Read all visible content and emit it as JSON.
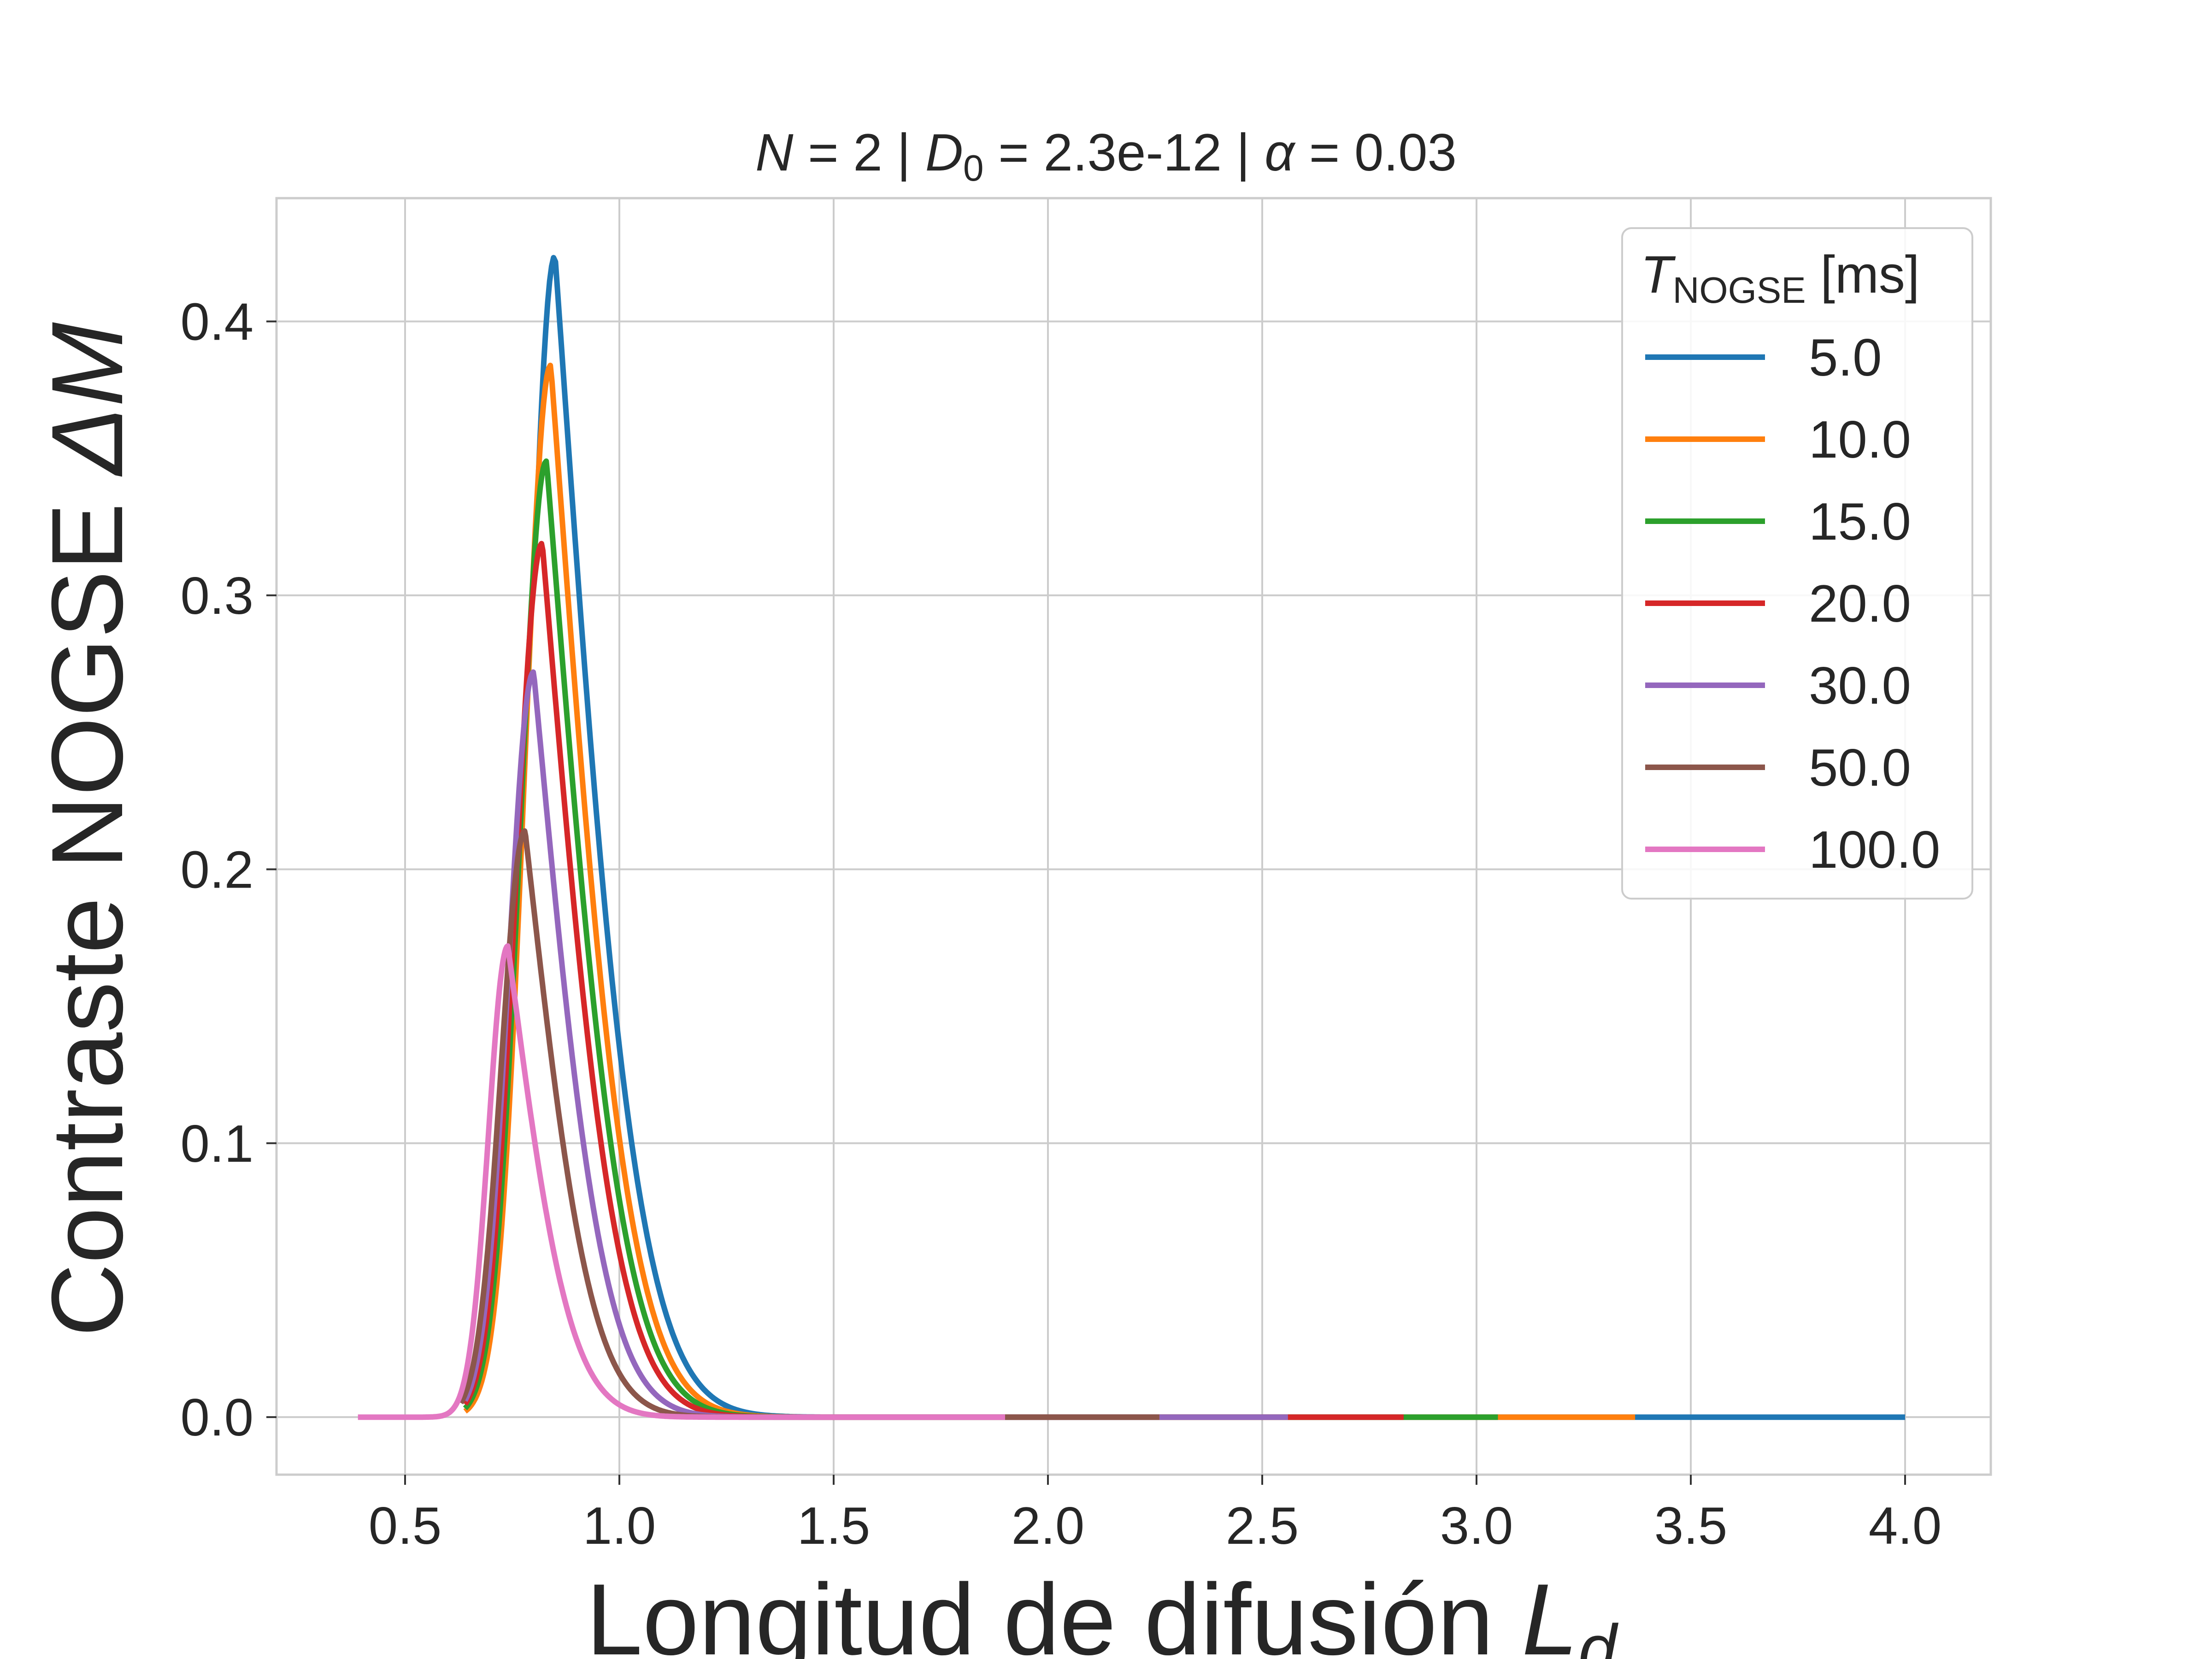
{
  "chart_data": {
    "type": "line",
    "title": {
      "n_symbol": "N",
      "n_value": " = 2 | ",
      "d_symbol": "D",
      "d_sub": "0",
      "d_value": " = 2.3e-12 | ",
      "alpha_symbol": "α",
      "alpha_value": " = 0.03"
    },
    "xlabel": {
      "text": "Longitud de difusión ",
      "symbol": "L",
      "sub": "d"
    },
    "ylabel": {
      "text": "Contraste NOGSE ",
      "symbol": "ΔM"
    },
    "xlim": [
      0.2,
      4.2
    ],
    "ylim": [
      -0.021,
      0.445
    ],
    "xticks": [
      "0.5",
      "1.0",
      "1.5",
      "2.0",
      "2.5",
      "3.0",
      "3.5",
      "4.0"
    ],
    "xtick_values": [
      0.5,
      1.0,
      1.5,
      2.0,
      2.5,
      3.0,
      3.5,
      4.0
    ],
    "yticks": [
      "0.0",
      "0.1",
      "0.2",
      "0.3",
      "0.4"
    ],
    "ytick_values": [
      0.0,
      0.1,
      0.2,
      0.3,
      0.4
    ],
    "grid": true,
    "legend": {
      "placement": "upper right",
      "title_symbol": "T",
      "title_sub": "NOGSE",
      "title_unit": " [ms]"
    },
    "series": [
      {
        "name": "5.0",
        "color": "#1f77b4",
        "x_start": 0.81,
        "x_end": 4.0,
        "peak_x": 0.85,
        "peak_y": 0.424,
        "sigma_left": 0.06,
        "tau": 0.105
      },
      {
        "name": "10.0",
        "color": "#ff7f0e",
        "x_start": 0.64,
        "x_end": 3.37,
        "peak_x": 0.84,
        "peak_y": 0.384,
        "sigma_left": 0.062,
        "tau": 0.1
      },
      {
        "name": "15.0",
        "color": "#2ca02c",
        "x_start": 0.64,
        "x_end": 3.05,
        "peak_x": 0.83,
        "peak_y": 0.349,
        "sigma_left": 0.062,
        "tau": 0.098
      },
      {
        "name": "20.0",
        "color": "#d62728",
        "x_start": 0.64,
        "x_end": 2.83,
        "peak_x": 0.82,
        "peak_y": 0.319,
        "sigma_left": 0.062,
        "tau": 0.095
      },
      {
        "name": "30.0",
        "color": "#9467bd",
        "x_start": 0.64,
        "x_end": 2.56,
        "peak_x": 0.8,
        "peak_y": 0.272,
        "sigma_left": 0.058,
        "tau": 0.09
      },
      {
        "name": "50.0",
        "color": "#8c564b",
        "x_start": 0.63,
        "x_end": 2.26,
        "peak_x": 0.78,
        "peak_y": 0.214,
        "sigma_left": 0.055,
        "tau": 0.085
      },
      {
        "name": "100.0",
        "color": "#e377c2",
        "x_start": 0.39,
        "x_end": 1.9,
        "peak_x": 0.74,
        "peak_y": 0.172,
        "sigma_left": 0.045,
        "tau": 0.08
      }
    ]
  }
}
